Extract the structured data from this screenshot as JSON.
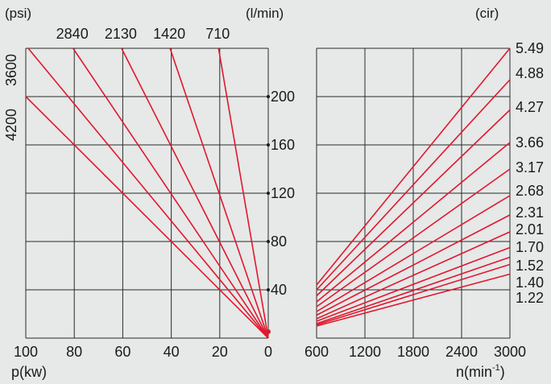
{
  "colors": {
    "background": "#e7e8e8",
    "grid": "#2a2a2a",
    "line": "#e0182d",
    "text": "#1a1a1a"
  },
  "chart_data": [
    {
      "type": "line",
      "panel": "power",
      "xlabel": "p(kw)",
      "x_ticks": [
        "100",
        "80",
        "60",
        "40",
        "20",
        "0"
      ],
      "xlim": [
        100,
        0
      ],
      "y_unit": "(l/min)",
      "y_ticks": [
        "200",
        "160",
        "120",
        "80",
        "40"
      ],
      "ylim": [
        0,
        240
      ],
      "grid": true,
      "pressure_unit": "(psi)",
      "series": [
        {
          "name": "710",
          "x": [
            0,
            20.5
          ],
          "y": [
            0,
            240
          ]
        },
        {
          "name": "1420",
          "x": [
            0,
            40.5
          ],
          "y": [
            0,
            240
          ]
        },
        {
          "name": "2130",
          "x": [
            0,
            60.5
          ],
          "y": [
            0,
            240
          ]
        },
        {
          "name": "2840",
          "x": [
            0,
            80.5
          ],
          "y": [
            0,
            240
          ]
        },
        {
          "name": "3600",
          "x": [
            0,
            99
          ],
          "y": [
            0,
            240
          ]
        },
        {
          "name": "4200",
          "x": [
            0,
            100
          ],
          "y": [
            0,
            200
          ]
        }
      ]
    },
    {
      "type": "line",
      "panel": "speed",
      "xlabel": "n(min-1)",
      "xlabel_main": "n(min",
      "xlabel_sup": "-1",
      "xlabel_close": ")",
      "x_ticks": [
        "600",
        "1200",
        "1800",
        "2400",
        "3000"
      ],
      "xlim": [
        600,
        3000
      ],
      "ylim": [
        0,
        240
      ],
      "grid": true,
      "legend_title": "(cir)",
      "series": [
        {
          "name": "5.49",
          "x": [
            600,
            3000
          ],
          "y": [
            44,
            240
          ]
        },
        {
          "name": "4.88",
          "x": [
            600,
            3000
          ],
          "y": [
            40,
            214
          ]
        },
        {
          "name": "4.27",
          "x": [
            600,
            3000
          ],
          "y": [
            35,
            189
          ]
        },
        {
          "name": "3.66",
          "x": [
            600,
            3000
          ],
          "y": [
            30,
            162
          ]
        },
        {
          "name": "3.17",
          "x": [
            600,
            3000
          ],
          "y": [
            26,
            140
          ]
        },
        {
          "name": "2.68",
          "x": [
            600,
            3000
          ],
          "y": [
            22,
            118
          ]
        },
        {
          "name": "2.31",
          "x": [
            600,
            3000
          ],
          "y": [
            19,
            102
          ]
        },
        {
          "name": "2.01",
          "x": [
            600,
            3000
          ],
          "y": [
            16,
            88
          ]
        },
        {
          "name": "1.70",
          "x": [
            600,
            3000
          ],
          "y": [
            14,
            75
          ]
        },
        {
          "name": "1.52",
          "x": [
            600,
            3000
          ],
          "y": [
            12,
            67
          ]
        },
        {
          "name": "1.40",
          "x": [
            600,
            3000
          ],
          "y": [
            11,
            61
          ]
        },
        {
          "name": "1.22",
          "x": [
            600,
            3000
          ],
          "y": [
            10,
            53
          ]
        }
      ]
    }
  ]
}
